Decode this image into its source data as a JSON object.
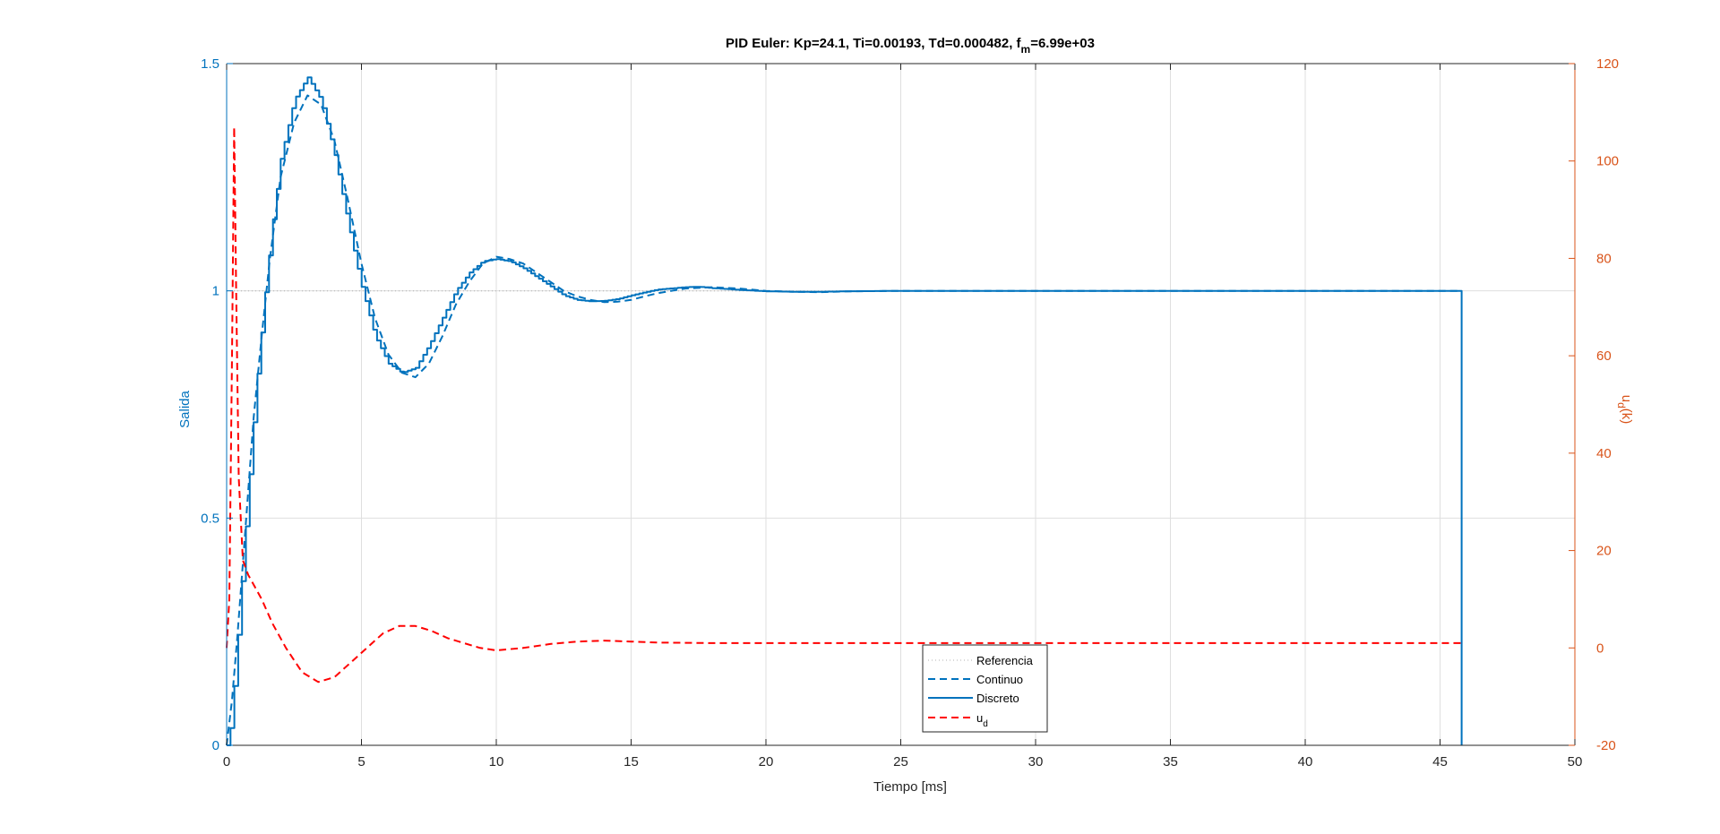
{
  "chart_data": {
    "type": "line",
    "title": {
      "main": "PID Euler: Kp=24.1, Ti=0.00193, Td=0.000482, f",
      "sub": "m",
      "tail": "=6.99e+03"
    },
    "xlabel": "Tiempo [ms]",
    "ylabel_left": "Salida",
    "ylabel_right": {
      "base": "u",
      "sub": "d",
      "tail": "(k)"
    },
    "xlim": [
      0,
      50
    ],
    "ylim_left": [
      0,
      1.5
    ],
    "ylim_right": [
      -20,
      120
    ],
    "x_ticks": [
      "0",
      "5",
      "10",
      "15",
      "20",
      "25",
      "30",
      "35",
      "40",
      "45",
      "50"
    ],
    "y_left_ticks": [
      "0",
      "0.5",
      "1",
      "1.5"
    ],
    "y_right_ticks": [
      "-20",
      "0",
      "20",
      "40",
      "60",
      "80",
      "100",
      "120"
    ],
    "grid": true,
    "legend_position": "bottom-center",
    "colors": {
      "left_axis": "#0072BD",
      "right_axis": "#D95319",
      "ud": "#FF0000",
      "reference": "#B0B0B0",
      "grid": "#DFDFDF"
    },
    "series": [
      {
        "name": "Referencia",
        "axis": "left",
        "style": "dotted",
        "x": [
          0,
          45.8
        ],
        "y": [
          1,
          1
        ]
      },
      {
        "name": "Continuo",
        "axis": "left",
        "style": "dashed",
        "x": [
          0,
          0.2,
          0.4,
          0.6,
          0.8,
          1.0,
          1.3,
          1.6,
          2.0,
          2.5,
          3.0,
          3.5,
          4.0,
          4.5,
          5.0,
          5.5,
          6.0,
          6.5,
          7.0,
          7.5,
          8.0,
          8.5,
          9.0,
          9.5,
          10.0,
          10.5,
          11.0,
          11.5,
          12.0,
          12.5,
          13.0,
          13.5,
          14.0,
          14.5,
          15.0,
          15.5,
          16.0,
          17.0,
          18.0,
          19.0,
          20.0,
          21.0,
          22.0,
          23.0,
          25.0,
          30.0,
          35.0,
          40.0,
          45.8
        ],
        "y": [
          0,
          0.1,
          0.24,
          0.4,
          0.56,
          0.72,
          0.9,
          1.07,
          1.25,
          1.37,
          1.43,
          1.41,
          1.33,
          1.2,
          1.06,
          0.94,
          0.86,
          0.82,
          0.81,
          0.84,
          0.9,
          0.97,
          1.02,
          1.06,
          1.075,
          1.07,
          1.06,
          1.04,
          1.02,
          1.0,
          0.988,
          0.98,
          0.975,
          0.976,
          0.98,
          0.988,
          0.995,
          1.005,
          1.008,
          1.005,
          1.0,
          0.998,
          0.997,
          0.999,
          1.0,
          1.0,
          1.0,
          1.0,
          1.0
        ]
      },
      {
        "name": "Discreto",
        "axis": "left",
        "style": "solid",
        "step": 0.143,
        "x": [
          0,
          0.15,
          0.3,
          0.5,
          0.7,
          0.9,
          1.1,
          1.4,
          1.7,
          2.0,
          2.5,
          3.0,
          3.5,
          4.0,
          4.5,
          5.0,
          5.5,
          6.0,
          6.5,
          7.0,
          7.5,
          8.0,
          8.5,
          9.0,
          9.5,
          10.0,
          10.5,
          11.0,
          11.5,
          12.0,
          12.5,
          13.0,
          13.5,
          14.0,
          14.5,
          15.0,
          15.5,
          16.0,
          17.0,
          17.5,
          18.0,
          19.0,
          20.0,
          21.0,
          22.0,
          23.0,
          25.0,
          30.0,
          35.0,
          40.0,
          45.8
        ],
        "y": [
          0,
          0.04,
          0.14,
          0.3,
          0.47,
          0.63,
          0.79,
          0.98,
          1.15,
          1.29,
          1.42,
          1.47,
          1.42,
          1.3,
          1.15,
          1.01,
          0.9,
          0.84,
          0.82,
          0.83,
          0.88,
          0.94,
          1.0,
          1.04,
          1.065,
          1.07,
          1.065,
          1.05,
          1.03,
          1.01,
          0.99,
          0.98,
          0.977,
          0.978,
          0.982,
          0.99,
          0.997,
          1.003,
          1.008,
          1.009,
          1.006,
          1.002,
          0.999,
          0.998,
          0.998,
          0.999,
          1.0,
          1.0,
          1.0,
          1.0,
          1.0
        ],
        "drop_to": 0
      },
      {
        "name": "u",
        "name_sub": "d",
        "axis": "right",
        "style": "dashed",
        "x": [
          0,
          0.1,
          0.2,
          0.28,
          0.35,
          0.45,
          0.6,
          0.8,
          1.0,
          1.3,
          1.7,
          2.2,
          2.8,
          3.4,
          4.0,
          4.6,
          5.2,
          5.8,
          6.4,
          7.0,
          7.6,
          8.2,
          8.8,
          9.4,
          10.0,
          11.0,
          12.0,
          13.0,
          14.0,
          15.0,
          16.0,
          18.0,
          20.0,
          25.0,
          30.0,
          35.0,
          40.0,
          45.8
        ],
        "y": [
          0,
          10,
          60,
          107,
          75,
          35,
          18,
          15,
          13,
          10,
          5,
          0,
          -5,
          -7,
          -6,
          -3,
          0,
          3,
          4.5,
          4.5,
          3.5,
          2,
          1,
          0,
          -0.5,
          0,
          0.8,
          1.3,
          1.5,
          1.3,
          1.1,
          1.0,
          1.0,
          1.0,
          1.0,
          1.0,
          1.0,
          1.0
        ]
      }
    ]
  }
}
